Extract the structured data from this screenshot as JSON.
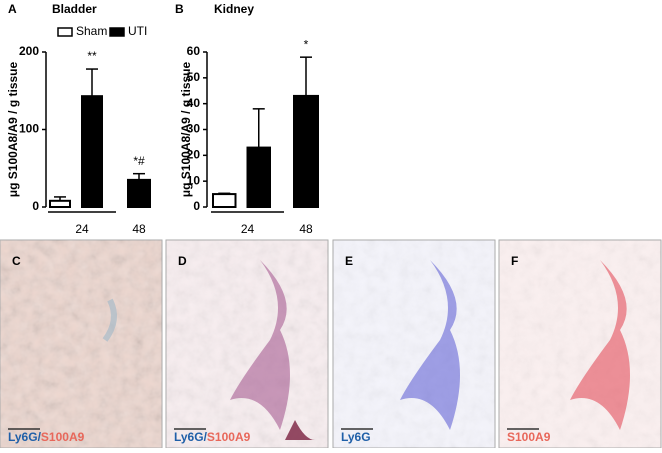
{
  "chart_data": [
    {
      "type": "bar",
      "panel": "A",
      "title": "Bladder",
      "y_label": "μg S100A8/A9 / g tissue",
      "categories": [
        "24",
        "48"
      ],
      "legend": true,
      "series": [
        {
          "name": "Sham",
          "color": "#ffffff",
          "values": [
            8,
            null
          ],
          "errors": [
            5,
            null
          ],
          "annotations": [
            null,
            null
          ]
        },
        {
          "name": "UTI",
          "color": "#000000",
          "values": [
            143,
            35
          ],
          "errors": [
            35,
            8
          ],
          "annotations": [
            "**",
            "*#"
          ]
        }
      ],
      "ylim": [
        0,
        200
      ],
      "yticks": [
        0,
        100,
        200
      ]
    },
    {
      "type": "bar",
      "panel": "B",
      "title": "Kidney",
      "y_label": "μg S100A8/A9 / g tissue",
      "categories": [
        "24",
        "48"
      ],
      "legend": false,
      "series": [
        {
          "name": "Sham",
          "color": "#ffffff",
          "values": [
            5,
            null
          ],
          "errors": [
            0.3,
            null
          ],
          "annotations": [
            null,
            null
          ]
        },
        {
          "name": "UTI",
          "color": "#000000",
          "values": [
            23,
            43
          ],
          "errors": [
            15,
            15
          ],
          "annotations": [
            null,
            "*"
          ]
        }
      ],
      "ylim": [
        0,
        60
      ],
      "yticks": [
        0,
        10,
        20,
        30,
        40,
        50,
        60
      ]
    }
  ],
  "images": [
    {
      "panel": "C",
      "caption": [
        {
          "text": "Ly6G",
          "color": "#1f5fa8"
        },
        {
          "text": "/",
          "color": "#1f5fa8"
        },
        {
          "text": "S100A9",
          "color": "#e8675a"
        }
      ]
    },
    {
      "panel": "D",
      "caption": [
        {
          "text": "Ly6G",
          "color": "#1f5fa8"
        },
        {
          "text": "/",
          "color": "#1f5fa8"
        },
        {
          "text": "S100A9",
          "color": "#e8675a"
        }
      ]
    },
    {
      "panel": "E",
      "caption": [
        {
          "text": "Ly6G",
          "color": "#1f5fa8"
        }
      ]
    },
    {
      "panel": "F",
      "caption": [
        {
          "text": "S100A9",
          "color": "#e8675a"
        }
      ]
    }
  ]
}
